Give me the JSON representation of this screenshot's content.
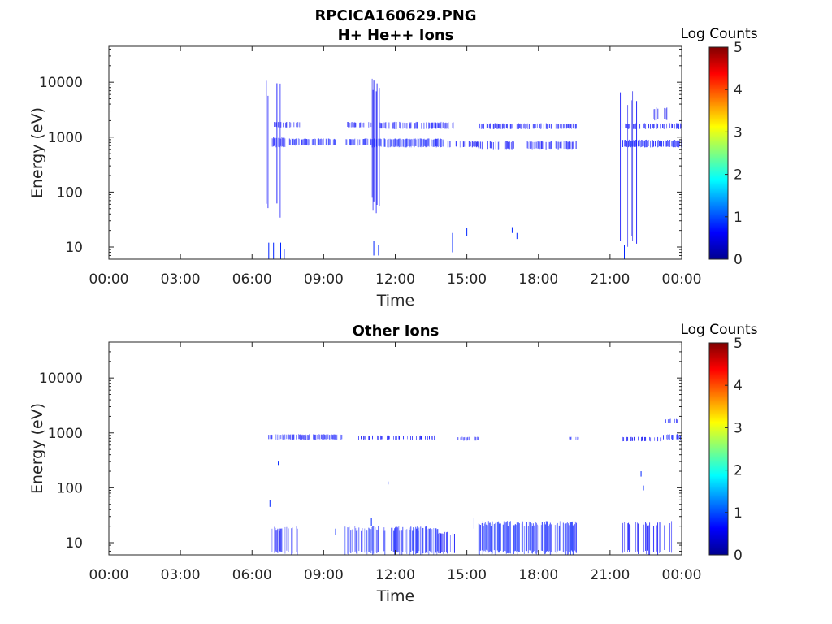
{
  "chart_data": [
    {
      "type": "heatmap",
      "suptitle": "RPCICA160629.PNG",
      "title": "H+ He++ Ions",
      "xlabel": "Time",
      "ylabel": "Energy (eV)",
      "x_ticks": [
        "00:00",
        "03:00",
        "06:00",
        "09:00",
        "12:00",
        "15:00",
        "18:00",
        "21:00",
        "00:00"
      ],
      "x_range_hours": [
        0,
        24
      ],
      "y_scale": "log",
      "y_ticks": [
        "10",
        "100",
        "1000",
        "10000"
      ],
      "y_range": [
        6,
        45000
      ],
      "colorbar": {
        "label": "Log Counts",
        "ticks": [
          "0",
          "1",
          "2",
          "3",
          "4",
          "5"
        ],
        "range": [
          0,
          5
        ],
        "colormap": "jet"
      },
      "grid": false,
      "bands": [
        {
          "t_start": 6.6,
          "t_end": 7.4,
          "e_low": 25,
          "e_high": 12000,
          "log_counts": 0.6,
          "density": 0.25
        },
        {
          "t_start": 6.8,
          "t_end": 8.0,
          "e_low": 1500,
          "e_high": 1900,
          "log_counts": 0.7,
          "density": 0.5
        },
        {
          "t_start": 6.8,
          "t_end": 7.5,
          "e_low": 650,
          "e_high": 1000,
          "log_counts": 0.8,
          "density": 0.55
        },
        {
          "t_start": 7.5,
          "t_end": 9.5,
          "e_low": 700,
          "e_high": 950,
          "log_counts": 1.0,
          "density": 0.7
        },
        {
          "t_start": 9.9,
          "t_end": 11.0,
          "e_low": 700,
          "e_high": 950,
          "log_counts": 1.0,
          "density": 0.7
        },
        {
          "t_start": 10.0,
          "t_end": 11.0,
          "e_low": 1500,
          "e_high": 1900,
          "log_counts": 0.8,
          "density": 0.6
        },
        {
          "t_start": 11.0,
          "t_end": 11.5,
          "e_low": 40,
          "e_high": 12000,
          "log_counts": 0.6,
          "density": 0.25
        },
        {
          "t_start": 11.3,
          "t_end": 14.5,
          "e_low": 1400,
          "e_high": 1900,
          "log_counts": 0.8,
          "density": 0.6
        },
        {
          "t_start": 11.0,
          "t_end": 14.0,
          "e_low": 650,
          "e_high": 950,
          "log_counts": 1.1,
          "density": 0.75
        },
        {
          "t_start": 14.0,
          "t_end": 15.5,
          "e_low": 650,
          "e_high": 850,
          "log_counts": 0.7,
          "density": 0.5
        },
        {
          "t_start": 15.5,
          "t_end": 16.9,
          "e_low": 1400,
          "e_high": 1800,
          "log_counts": 0.8,
          "density": 0.55
        },
        {
          "t_start": 15.5,
          "t_end": 17.0,
          "e_low": 600,
          "e_high": 850,
          "log_counts": 0.8,
          "density": 0.55
        },
        {
          "t_start": 17.1,
          "t_end": 19.6,
          "e_low": 1400,
          "e_high": 1800,
          "log_counts": 0.8,
          "density": 0.55
        },
        {
          "t_start": 17.5,
          "t_end": 19.6,
          "e_low": 600,
          "e_high": 850,
          "log_counts": 0.9,
          "density": 0.6
        },
        {
          "t_start": 21.4,
          "t_end": 22.2,
          "e_low": 8,
          "e_high": 10000,
          "log_counts": 0.6,
          "density": 0.22
        },
        {
          "t_start": 21.5,
          "t_end": 24.0,
          "e_low": 1400,
          "e_high": 1800,
          "log_counts": 0.8,
          "density": 0.55
        },
        {
          "t_start": 21.5,
          "t_end": 24.0,
          "e_low": 650,
          "e_high": 900,
          "log_counts": 1.0,
          "density": 0.7
        },
        {
          "t_start": 22.8,
          "t_end": 23.4,
          "e_low": 2000,
          "e_high": 3500,
          "log_counts": 0.5,
          "density": 0.2
        }
      ],
      "spikes": [
        {
          "t": 6.7,
          "e_low": 6,
          "e_high": 12
        },
        {
          "t": 6.9,
          "e_low": 6,
          "e_high": 12
        },
        {
          "t": 7.2,
          "e_low": 6,
          "e_high": 12
        },
        {
          "t": 7.35,
          "e_low": 6,
          "e_high": 9
        },
        {
          "t": 11.1,
          "e_low": 7,
          "e_high": 13
        },
        {
          "t": 11.3,
          "e_low": 7,
          "e_high": 11
        },
        {
          "t": 14.4,
          "e_low": 8,
          "e_high": 18
        },
        {
          "t": 15.0,
          "e_low": 16,
          "e_high": 22
        },
        {
          "t": 16.9,
          "e_low": 18,
          "e_high": 23
        },
        {
          "t": 17.1,
          "e_low": 14,
          "e_high": 18
        },
        {
          "t": 21.6,
          "e_low": 6,
          "e_high": 11
        }
      ]
    },
    {
      "type": "heatmap",
      "title": "Other Ions",
      "xlabel": "Time",
      "ylabel": "Energy (eV)",
      "x_ticks": [
        "00:00",
        "03:00",
        "06:00",
        "09:00",
        "12:00",
        "15:00",
        "18:00",
        "21:00",
        "00:00"
      ],
      "x_range_hours": [
        0,
        24
      ],
      "y_scale": "log",
      "y_ticks": [
        "10",
        "100",
        "1000",
        "10000"
      ],
      "y_range": [
        6,
        45000
      ],
      "colorbar": {
        "label": "Log Counts",
        "ticks": [
          "0",
          "1",
          "2",
          "3",
          "4",
          "5"
        ],
        "range": [
          0,
          5
        ],
        "colormap": "jet"
      },
      "grid": false,
      "bands": [
        {
          "t_start": 6.7,
          "t_end": 9.9,
          "e_low": 750,
          "e_high": 950,
          "log_counts": 0.9,
          "density": 0.55
        },
        {
          "t_start": 10.4,
          "t_end": 13.8,
          "e_low": 750,
          "e_high": 900,
          "log_counts": 0.7,
          "density": 0.4
        },
        {
          "t_start": 14.6,
          "t_end": 15.5,
          "e_low": 720,
          "e_high": 850,
          "log_counts": 0.8,
          "density": 0.5
        },
        {
          "t_start": 19.3,
          "t_end": 19.7,
          "e_low": 750,
          "e_high": 850,
          "log_counts": 0.9,
          "density": 0.6
        },
        {
          "t_start": 21.5,
          "t_end": 23.2,
          "e_low": 700,
          "e_high": 850,
          "log_counts": 0.6,
          "density": 0.35
        },
        {
          "t_start": 23.2,
          "t_end": 24.0,
          "e_low": 750,
          "e_high": 950,
          "log_counts": 1.0,
          "density": 0.6
        },
        {
          "t_start": 23.3,
          "t_end": 23.9,
          "e_low": 1500,
          "e_high": 1800,
          "log_counts": 0.9,
          "density": 0.5
        },
        {
          "t_start": 6.6,
          "t_end": 8.0,
          "e_low": 6,
          "e_high": 20,
          "log_counts": 0.8,
          "density": 0.5
        },
        {
          "t_start": 9.9,
          "t_end": 13.8,
          "e_low": 6,
          "e_high": 20,
          "log_counts": 1.1,
          "density": 0.65
        },
        {
          "t_start": 13.8,
          "t_end": 14.5,
          "e_low": 6,
          "e_high": 16,
          "log_counts": 0.8,
          "density": 0.5
        },
        {
          "t_start": 15.5,
          "t_end": 19.6,
          "e_low": 6,
          "e_high": 25,
          "log_counts": 1.2,
          "density": 0.75
        },
        {
          "t_start": 21.5,
          "t_end": 23.6,
          "e_low": 6,
          "e_high": 25,
          "log_counts": 0.8,
          "density": 0.45
        }
      ],
      "spikes": [
        {
          "t": 6.75,
          "e_low": 45,
          "e_high": 60
        },
        {
          "t": 7.1,
          "e_low": 260,
          "e_high": 300
        },
        {
          "t": 9.5,
          "e_low": 14,
          "e_high": 18
        },
        {
          "t": 11.0,
          "e_low": 20,
          "e_high": 28
        },
        {
          "t": 11.7,
          "e_low": 115,
          "e_high": 130
        },
        {
          "t": 15.3,
          "e_low": 18,
          "e_high": 28
        },
        {
          "t": 22.3,
          "e_low": 160,
          "e_high": 200
        },
        {
          "t": 22.4,
          "e_low": 90,
          "e_high": 110
        }
      ]
    }
  ]
}
